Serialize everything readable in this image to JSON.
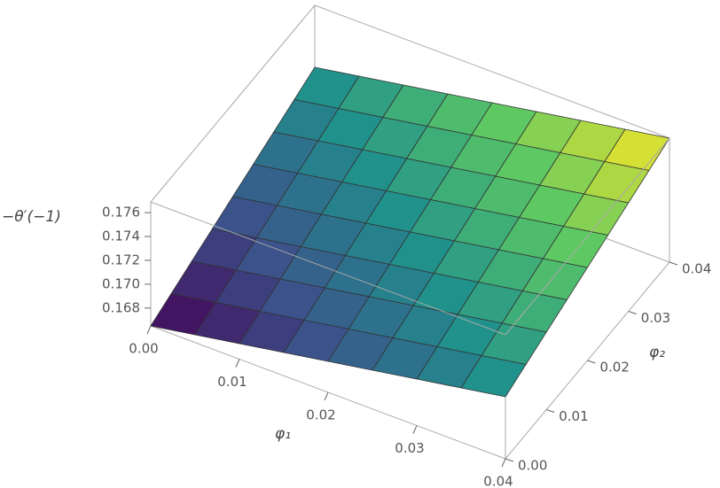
{
  "chart_data": {
    "type": "surface",
    "xlabel": "φ₁",
    "ylabel": "φ₂",
    "zlabel": "−θ′(−1)",
    "colormap": "viridis",
    "x": [
      0,
      0.005,
      0.01,
      0.015,
      0.02,
      0.025,
      0.03,
      0.035,
      0.04
    ],
    "y": [
      0,
      0.005,
      0.01,
      0.015,
      0.02,
      0.025,
      0.03,
      0.035,
      0.04
    ],
    "z": [
      [
        0.1665,
        0.16715,
        0.1678,
        0.16845,
        0.1691,
        0.16975,
        0.1704,
        0.17105,
        0.1717
      ],
      [
        0.16715,
        0.1678,
        0.16845,
        0.1691,
        0.16975,
        0.1704,
        0.17105,
        0.1717,
        0.17235
      ],
      [
        0.1678,
        0.16845,
        0.1691,
        0.16975,
        0.1704,
        0.17105,
        0.1717,
        0.17235,
        0.173
      ],
      [
        0.16845,
        0.1691,
        0.16975,
        0.1704,
        0.17105,
        0.1717,
        0.17235,
        0.173,
        0.17365
      ],
      [
        0.1691,
        0.16975,
        0.1704,
        0.17105,
        0.1717,
        0.17235,
        0.173,
        0.17365,
        0.1743
      ],
      [
        0.16975,
        0.1704,
        0.17105,
        0.1717,
        0.17235,
        0.173,
        0.17365,
        0.1743,
        0.17495
      ],
      [
        0.1704,
        0.17105,
        0.1717,
        0.17235,
        0.173,
        0.17365,
        0.1743,
        0.17495,
        0.1756
      ],
      [
        0.17105,
        0.1717,
        0.17235,
        0.173,
        0.17365,
        0.1743,
        0.17495,
        0.1756,
        0.17625
      ],
      [
        0.1717,
        0.17235,
        0.173,
        0.17365,
        0.1743,
        0.17495,
        0.1756,
        0.17625,
        0.1769
      ]
    ],
    "xlim": [
      0,
      0.04
    ],
    "ylim": [
      0,
      0.04
    ],
    "zlim": [
      0.1665,
      0.1769
    ],
    "xticks": [
      {
        "value": 0,
        "label": "0.00"
      },
      0.01,
      0.02,
      0.03,
      0.04
    ],
    "yticks": [
      {
        "value": 0,
        "label": "0.00"
      },
      0.01,
      0.02,
      0.03,
      0.04
    ],
    "zticks": [
      0.168,
      {
        "value": 0.17,
        "label": "0.170"
      },
      0.172,
      0.174,
      0.176
    ]
  }
}
